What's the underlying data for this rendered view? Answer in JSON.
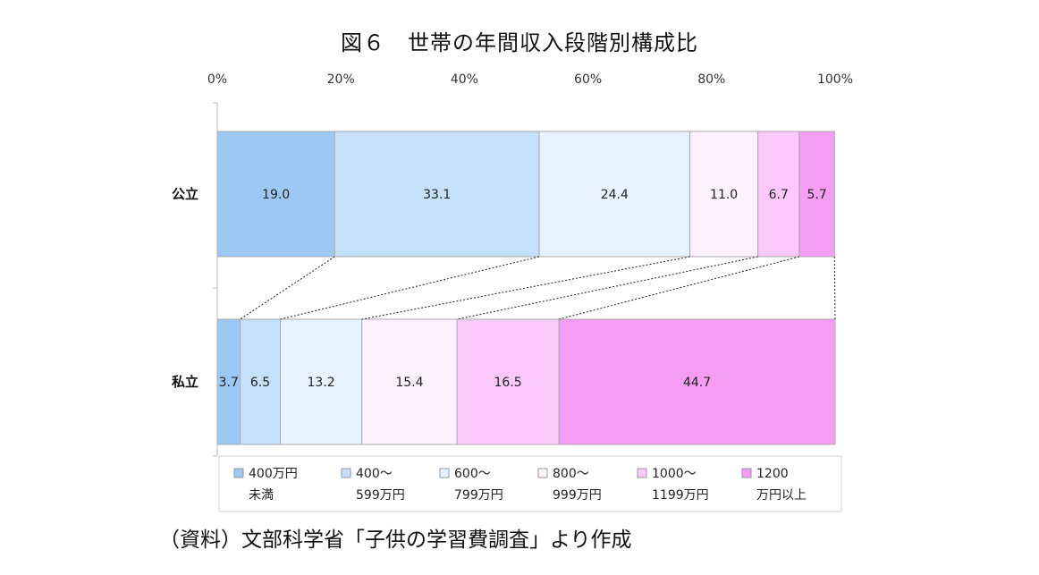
{
  "title": "図６　世帯の年間収入段階別構成比",
  "source": "（資料）文部科学省「子供の学習費調査」より作成",
  "chart_data": {
    "type": "bar",
    "orientation": "horizontal",
    "stacked": "percent",
    "categories": [
      "公立",
      "私立"
    ],
    "xlim": [
      0,
      100
    ],
    "ticks": [
      "0%",
      "20%",
      "40%",
      "60%",
      "80%",
      "100%"
    ],
    "legend_position": "bottom",
    "series": [
      {
        "name": "400万円未満",
        "lines": [
          "400万円",
          "未満"
        ],
        "color": "#9dc8f4",
        "values": [
          19.0,
          3.7
        ],
        "labels": [
          "19.0",
          "3.7"
        ]
      },
      {
        "name": "400～599万円",
        "lines": [
          "400～",
          "599万円"
        ],
        "color": "#c4e0fb",
        "values": [
          33.1,
          6.5
        ],
        "labels": [
          "33.1",
          "6.5"
        ]
      },
      {
        "name": "600～799万円",
        "lines": [
          "600～",
          "799万円"
        ],
        "color": "#e6f2fd",
        "values": [
          24.4,
          13.2
        ],
        "labels": [
          "24.4",
          "13.2"
        ]
      },
      {
        "name": "800～999万円",
        "lines": [
          "800～",
          "999万円"
        ],
        "color": "#fcf2fc",
        "values": [
          11.0,
          15.4
        ],
        "labels": [
          "11.0",
          "15.4"
        ]
      },
      {
        "name": "1000～1199万円",
        "lines": [
          "1000～",
          "1199万円"
        ],
        "color": "#fac8fa",
        "values": [
          6.7,
          16.5
        ],
        "labels": [
          "6.7",
          "16.5"
        ]
      },
      {
        "name": "1200万円以上",
        "lines": [
          "1200",
          "万円以上"
        ],
        "color": "#f59cf5",
        "values": [
          5.7,
          44.7
        ],
        "labels": [
          "5.7",
          "44.7"
        ]
      }
    ],
    "series_lines": true,
    "grid": false
  }
}
